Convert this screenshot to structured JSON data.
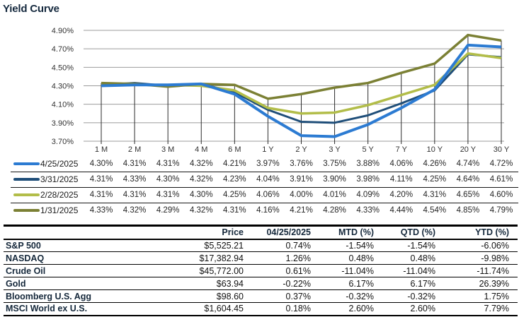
{
  "title": "Yield Curve",
  "colors": {
    "navy_text": "#15293e",
    "grid_line": "#9b9b9b",
    "drop_line": "#2b2b2b",
    "table_border": "#000000"
  },
  "chart_data": {
    "type": "line",
    "title": "Yield Curve",
    "categories": [
      "1 M",
      "2 M",
      "3 M",
      "4 M",
      "6 M",
      "1 Y",
      "2 Y",
      "3 Y",
      "5 Y",
      "7 Y",
      "10 Y",
      "20 Y",
      "30 Y"
    ],
    "ylim": [
      3.7,
      4.9
    ],
    "yticks": [
      4.9,
      4.7,
      4.5,
      4.3,
      4.1,
      3.9,
      3.7
    ],
    "y_tick_format": "0.00%",
    "grid": true,
    "legend_position": "bottom-data-table",
    "series": [
      {
        "name": "4/25/2025",
        "color": "#2c7bd2",
        "stroke_width": 4,
        "values": [
          4.3,
          4.31,
          4.31,
          4.32,
          4.21,
          3.97,
          3.76,
          3.75,
          3.88,
          4.06,
          4.26,
          4.74,
          4.72
        ]
      },
      {
        "name": "3/31/2025",
        "color": "#1f4e79",
        "stroke_width": 3,
        "values": [
          4.31,
          4.33,
          4.3,
          4.32,
          4.23,
          4.04,
          3.91,
          3.9,
          3.98,
          4.11,
          4.25,
          4.64,
          4.61
        ]
      },
      {
        "name": "2/28/2025",
        "color": "#b2bd49",
        "stroke_width": 3.5,
        "values": [
          4.31,
          4.31,
          4.31,
          4.3,
          4.25,
          4.06,
          4.0,
          4.01,
          4.09,
          4.2,
          4.31,
          4.65,
          4.6
        ]
      },
      {
        "name": "1/31/2025",
        "color": "#7b8034",
        "stroke_width": 3.5,
        "values": [
          4.33,
          4.32,
          4.29,
          4.32,
          4.31,
          4.16,
          4.21,
          4.28,
          4.33,
          4.44,
          4.54,
          4.85,
          4.79
        ]
      }
    ],
    "draw_order": [
      1,
      2,
      3,
      0
    ]
  },
  "market_table": {
    "headers": [
      "",
      "Price",
      "04/25/2025",
      "MTD (%)",
      "QTD (%)",
      "YTD (%)"
    ],
    "rows": [
      [
        "S&P 500",
        "$5,525.21",
        "0.74%",
        "-1.54%",
        "-1.54%",
        "-6.06%"
      ],
      [
        "NASDAQ",
        "$17,382.94",
        "1.26%",
        "0.48%",
        "0.48%",
        "-9.98%"
      ],
      [
        "Crude Oil",
        "$45,772.00",
        "0.61%",
        "-11.04%",
        "-11.04%",
        "-11.74%"
      ],
      [
        "Gold",
        "$63.94",
        "-0.22%",
        "6.17%",
        "6.17%",
        "26.39%"
      ],
      [
        "Bloomberg U.S. Agg",
        "$98.60",
        "0.37%",
        "-0.32%",
        "-0.32%",
        "1.75%"
      ],
      [
        "MSCI World ex U.S.",
        "$1,604.45",
        "0.18%",
        "2.60%",
        "2.60%",
        "7.79%"
      ]
    ]
  }
}
